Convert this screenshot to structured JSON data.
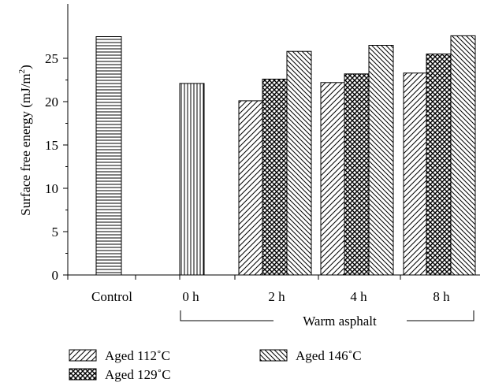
{
  "chart_data": {
    "type": "bar",
    "ylabel_main": "Surface free energy (mJ/m",
    "ylabel_sup": "2",
    "ylabel_close": ")",
    "ylim": [
      0,
      29
    ],
    "yticks": [
      0,
      5,
      10,
      15,
      20,
      25
    ],
    "yticks_text": [
      "0",
      "5",
      "10",
      "15",
      "20",
      "25"
    ],
    "grid": false,
    "categories": [
      "Control",
      "0 h",
      "2 h",
      "4 h",
      "8 h"
    ],
    "group_label": "Warm asphalt",
    "bars": [
      {
        "category": "Control",
        "series": "Control",
        "value": 27.5
      },
      {
        "category": "0 h",
        "series": "0 h",
        "value": 22.1
      },
      {
        "category": "2 h",
        "series": "Aged 112°C",
        "value": 20.1
      },
      {
        "category": "2 h",
        "series": "Aged 129°C",
        "value": 22.6
      },
      {
        "category": "2 h",
        "series": "Aged 146°C",
        "value": 25.8
      },
      {
        "category": "4 h",
        "series": "Aged 112°C",
        "value": 22.2
      },
      {
        "category": "4 h",
        "series": "Aged 129°C",
        "value": 23.2
      },
      {
        "category": "4 h",
        "series": "Aged 146°C",
        "value": 26.5
      },
      {
        "category": "8 h",
        "series": "Aged 112°C",
        "value": 23.3
      },
      {
        "category": "8 h",
        "series": "Aged 129°C",
        "value": 25.5
      },
      {
        "category": "8 h",
        "series": "Aged 146°C",
        "value": 27.6
      }
    ],
    "legend": [
      {
        "name": "Aged 112˚C",
        "pattern": "diag-forward"
      },
      {
        "name": "Aged 129˚C",
        "pattern": "crosshatch"
      },
      {
        "name": "Aged 146˚C",
        "pattern": "diag-back"
      }
    ],
    "legend_placement": "bottom",
    "colors": {
      "ink": "#000000",
      "background": "#ffffff"
    }
  }
}
